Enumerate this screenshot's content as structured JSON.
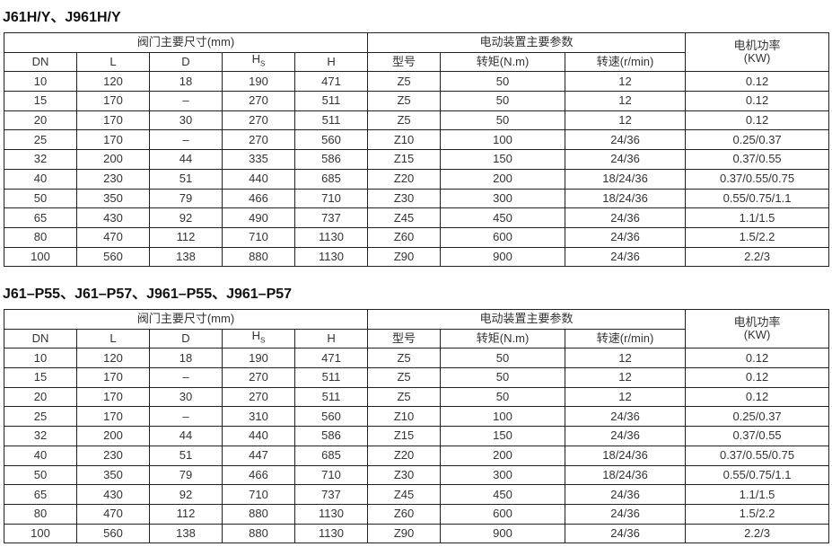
{
  "headers": {
    "dims": "阀门主要尺寸(mm)",
    "actuator": "电动装置主要参数",
    "power": "电机功率",
    "power_unit": "(KW)",
    "dn": "DN",
    "l": "L",
    "d": "D",
    "hs": "H",
    "hs_sub": "S",
    "h": "H",
    "model": "型号",
    "torque": "转矩(N.m)",
    "speed": "转速(r/min)"
  },
  "tables": [
    {
      "title": "J61H/Y、J961H/Y",
      "rows": [
        [
          "10",
          "120",
          "18",
          "190",
          "471",
          "Z5",
          "50",
          "12",
          "0.12"
        ],
        [
          "15",
          "170",
          "–",
          "270",
          "511",
          "Z5",
          "50",
          "12",
          "0.12"
        ],
        [
          "20",
          "170",
          "30",
          "270",
          "511",
          "Z5",
          "50",
          "12",
          "0.12"
        ],
        [
          "25",
          "170",
          "–",
          "270",
          "560",
          "Z10",
          "100",
          "24/36",
          "0.25/0.37"
        ],
        [
          "32",
          "200",
          "44",
          "335",
          "586",
          "Z15",
          "150",
          "24/36",
          "0.37/0.55"
        ],
        [
          "40",
          "230",
          "51",
          "440",
          "685",
          "Z20",
          "200",
          "18/24/36",
          "0.37/0.55/0.75"
        ],
        [
          "50",
          "350",
          "79",
          "466",
          "710",
          "Z30",
          "300",
          "18/24/36",
          "0.55/0.75/1.1"
        ],
        [
          "65",
          "430",
          "92",
          "490",
          "737",
          "Z45",
          "450",
          "24/36",
          "1.1/1.5"
        ],
        [
          "80",
          "470",
          "112",
          "710",
          "1130",
          "Z60",
          "600",
          "24/36",
          "1.5/2.2"
        ],
        [
          "100",
          "560",
          "138",
          "880",
          "1130",
          "Z90",
          "900",
          "24/36",
          "2.2/3"
        ]
      ]
    },
    {
      "title": "J61–P55、J61–P57、J961–P55、J961–P57",
      "rows": [
        [
          "10",
          "120",
          "18",
          "190",
          "471",
          "Z5",
          "50",
          "12",
          "0.12"
        ],
        [
          "15",
          "170",
          "–",
          "270",
          "511",
          "Z5",
          "50",
          "12",
          "0.12"
        ],
        [
          "20",
          "170",
          "30",
          "270",
          "511",
          "Z5",
          "50",
          "12",
          "0.12"
        ],
        [
          "25",
          "170",
          "–",
          "310",
          "560",
          "Z10",
          "100",
          "24/36",
          "0.25/0.37"
        ],
        [
          "32",
          "200",
          "44",
          "440",
          "586",
          "Z15",
          "150",
          "24/36",
          "0.37/0.55"
        ],
        [
          "40",
          "230",
          "51",
          "447",
          "685",
          "Z20",
          "200",
          "18/24/36",
          "0.37/0.55/0.75"
        ],
        [
          "50",
          "350",
          "79",
          "466",
          "710",
          "Z30",
          "300",
          "18/24/36",
          "0.55/0.75/1.1"
        ],
        [
          "65",
          "430",
          "92",
          "710",
          "737",
          "Z45",
          "450",
          "24/36",
          "1.1/1.5"
        ],
        [
          "80",
          "470",
          "112",
          "880",
          "1130",
          "Z60",
          "600",
          "24/36",
          "1.5/2.2"
        ],
        [
          "100",
          "560",
          "138",
          "880",
          "1130",
          "Z90",
          "900",
          "24/36",
          "2.2/3"
        ]
      ]
    }
  ]
}
